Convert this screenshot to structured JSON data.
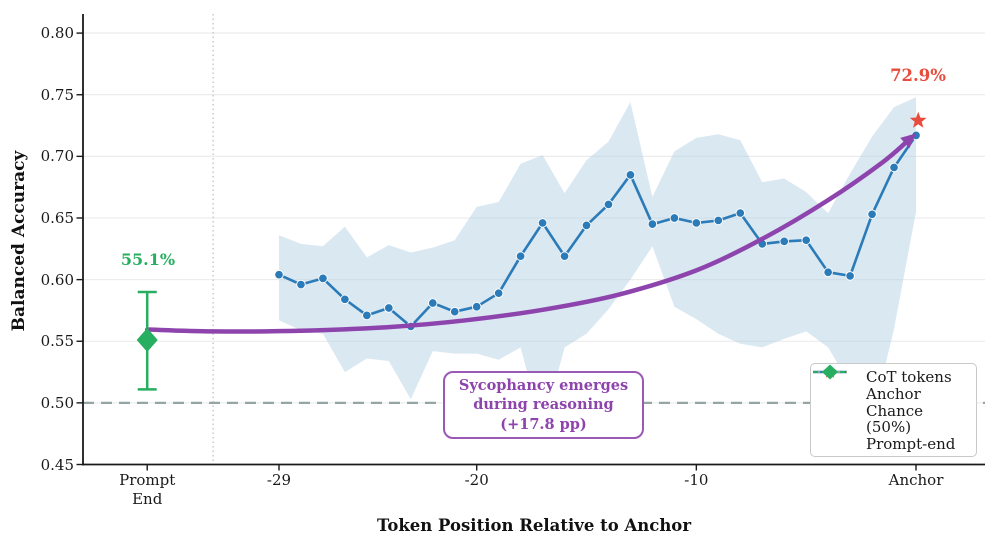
{
  "colors": {
    "cot_line": "#2b7bb9",
    "band_fill": "#aecbe3",
    "trend_purple": "#8e44ad",
    "prompt_green": "#27ae60",
    "anchor_red": "#e74c3c",
    "chance_gray": "#95a5a6",
    "grid": "#e9e9e9",
    "spine": "#1a1a1a"
  },
  "labels": {
    "prompt_end_value": "55.1%",
    "anchor_value": "72.9%"
  },
  "annotation": {
    "text": "Sycophancy emerges\nduring reasoning\n(+17.8 pp)"
  },
  "legend": {
    "items": [
      {
        "label": "CoT tokens"
      },
      {
        "label": "Anchor"
      },
      {
        "label": "Chance (50%)"
      },
      {
        "label": "Prompt-end"
      }
    ]
  },
  "chart_data": {
    "type": "line",
    "title": "",
    "xlabel": "Token Position Relative to Anchor",
    "ylabel": "Balanced Accuracy",
    "ylim": [
      0.45,
      0.8155
    ],
    "grid": "horizontal-only",
    "legend_position": "lower-right",
    "yticks": [
      "0.45",
      "0.50",
      "0.55",
      "0.60",
      "0.65",
      "0.70",
      "0.75",
      "0.80"
    ],
    "ytick_values": [
      0.45,
      0.5,
      0.55,
      0.6,
      0.65,
      0.7,
      0.75,
      0.8
    ],
    "xticks": [
      {
        "label": "Prompt\nEnd",
        "t": -35
      },
      {
        "label": "-29",
        "t": -29
      },
      {
        "label": "-20",
        "t": -20
      },
      {
        "label": "-10",
        "t": -10
      },
      {
        "label": "Anchor",
        "t": 0
      }
    ],
    "separator_x": -32,
    "chance_value": 0.5,
    "series": [
      {
        "name": "CoT tokens",
        "type": "line-markers-band",
        "x": [
          -29,
          -28,
          -27,
          -26,
          -25,
          -24,
          -23,
          -22,
          -21,
          -20,
          -19,
          -18,
          -17,
          -16,
          -15,
          -14,
          -13,
          -12,
          -11,
          -10,
          -9,
          -8,
          -7,
          -6,
          -5,
          -4,
          -3,
          -2,
          -1,
          0
        ],
        "values": [
          0.604,
          0.596,
          0.601,
          0.584,
          0.571,
          0.577,
          0.562,
          0.581,
          0.574,
          0.578,
          0.589,
          0.619,
          0.646,
          0.619,
          0.644,
          0.661,
          0.685,
          0.645,
          0.65,
          0.646,
          0.648,
          0.654,
          0.629,
          0.631,
          0.632,
          0.606,
          0.603,
          0.653,
          0.691,
          0.717
        ],
        "band_upper": [
          0.636,
          0.629,
          0.627,
          0.643,
          0.618,
          0.628,
          0.622,
          0.626,
          0.632,
          0.659,
          0.663,
          0.694,
          0.701,
          0.67,
          0.697,
          0.712,
          0.744,
          0.667,
          0.704,
          0.715,
          0.718,
          0.713,
          0.679,
          0.682,
          0.671,
          0.654,
          0.686,
          0.716,
          0.74,
          0.748
        ],
        "band_lower": [
          0.567,
          0.559,
          0.556,
          0.525,
          0.536,
          0.534,
          0.503,
          0.542,
          0.54,
          0.54,
          0.535,
          0.545,
          0.478,
          0.545,
          0.556,
          0.576,
          0.6,
          0.627,
          0.578,
          0.568,
          0.556,
          0.548,
          0.545,
          0.552,
          0.558,
          0.545,
          0.515,
          0.486,
          0.56,
          0.655
        ]
      },
      {
        "name": "Trend",
        "type": "smooth-curve-arrow",
        "points": [
          [
            -35,
            0.5595
          ],
          [
            -32,
            0.558
          ],
          [
            -28,
            0.5585
          ],
          [
            -24,
            0.5615
          ],
          [
            -20.5,
            0.567
          ],
          [
            -17,
            0.5755
          ],
          [
            -13.5,
            0.588
          ],
          [
            -10,
            0.6075
          ],
          [
            -7,
            0.633
          ],
          [
            -4,
            0.6645
          ],
          [
            -1.5,
            0.6955
          ],
          [
            -0.2,
            0.7155
          ]
        ]
      },
      {
        "name": "Anchor",
        "type": "star-marker",
        "x": 0.1,
        "value": 0.729
      },
      {
        "name": "Prompt-end",
        "type": "diamond-errorbar",
        "x": -35,
        "value": 0.551,
        "err_low": 0.511,
        "err_high": 0.59
      }
    ]
  }
}
